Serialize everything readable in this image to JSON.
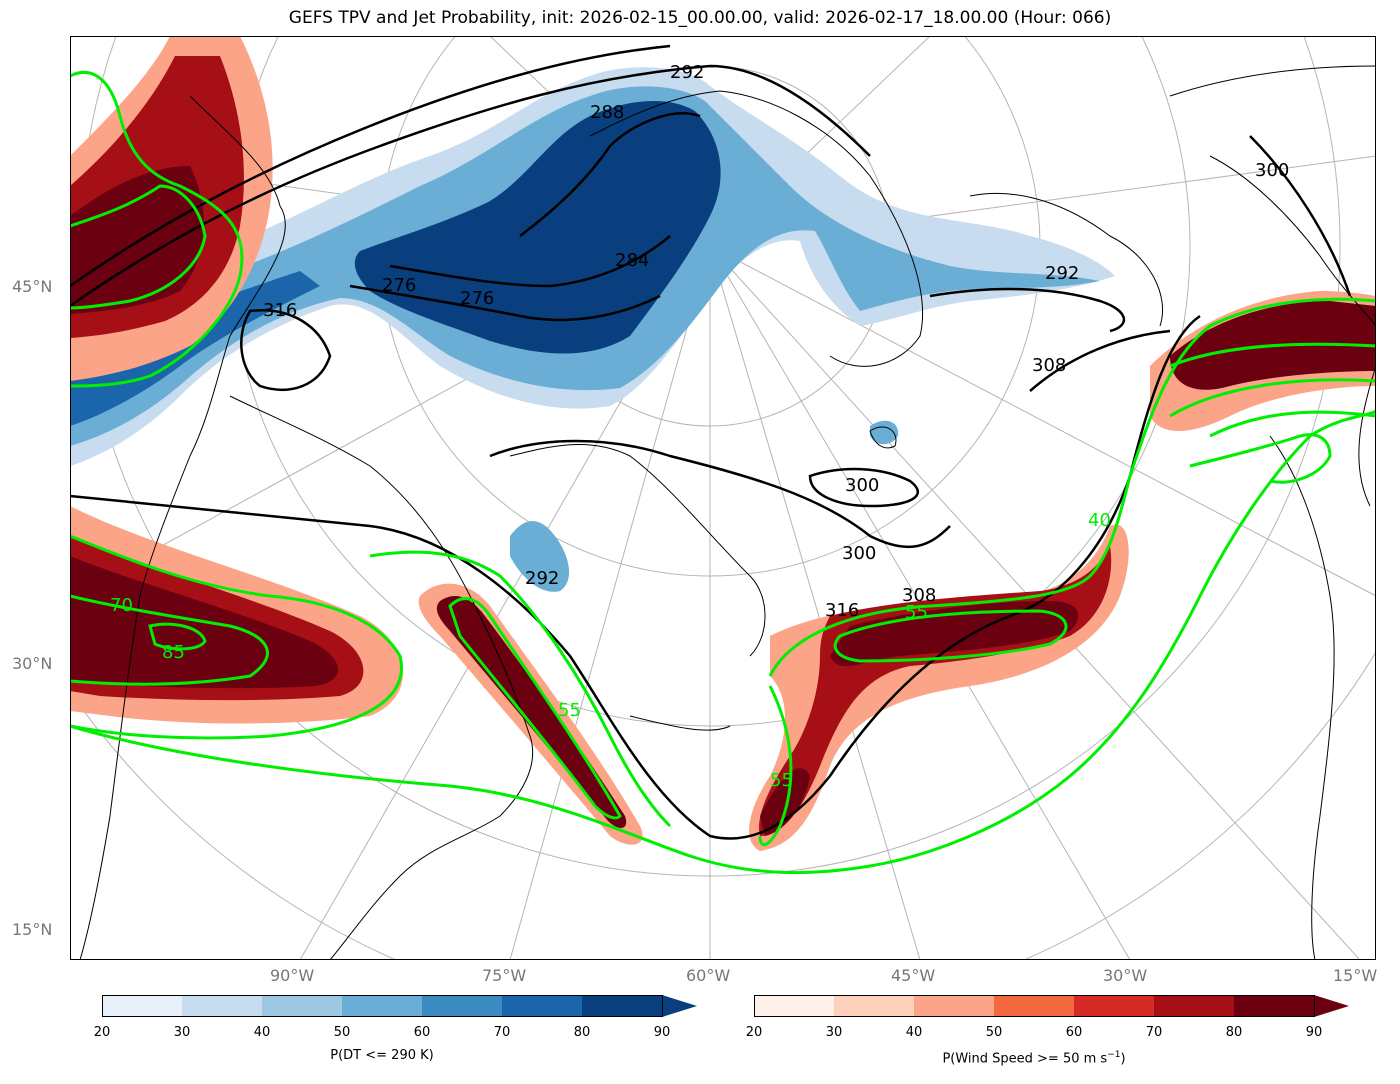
{
  "title": "GEFS TPV and Jet Probability, init: 2026-02-15_00.00.00, valid: 2026-02-17_18.00.00 (Hour: 066)",
  "lat_labels": [
    "45°N",
    "30°N",
    "15°N"
  ],
  "lon_labels": [
    "90°W",
    "75°W",
    "60°W",
    "45°W",
    "30°W",
    "15°W"
  ],
  "colorbar_blue": {
    "label": "P(DT <= 290 K)",
    "ticks": [
      "20",
      "30",
      "40",
      "50",
      "60",
      "70",
      "80",
      "90"
    ],
    "colors": [
      "#e8f1fa",
      "#c8dcef",
      "#9ec8e1",
      "#6aaed6",
      "#3b8bc2",
      "#1b65aa",
      "#0a3f7f"
    ]
  },
  "colorbar_red": {
    "label_main": "P(Wind Speed >= 50 m s",
    "label_sup": "−1",
    "label_end": ")",
    "ticks": [
      "20",
      "30",
      "40",
      "50",
      "60",
      "70",
      "80",
      "90"
    ],
    "colors": [
      "#fff0ea",
      "#fdd0bc",
      "#fca488",
      "#f4683f",
      "#d52a26",
      "#a50f15",
      "#6b0010"
    ]
  },
  "contour_labels_theta": [
    "292",
    "288",
    "284",
    "276",
    "276",
    "316",
    "300",
    "300",
    "308",
    "308",
    "316",
    "292",
    "300",
    "292"
  ],
  "contour_labels_wind": [
    "70",
    "85",
    "55",
    "40",
    "55",
    "55"
  ]
}
